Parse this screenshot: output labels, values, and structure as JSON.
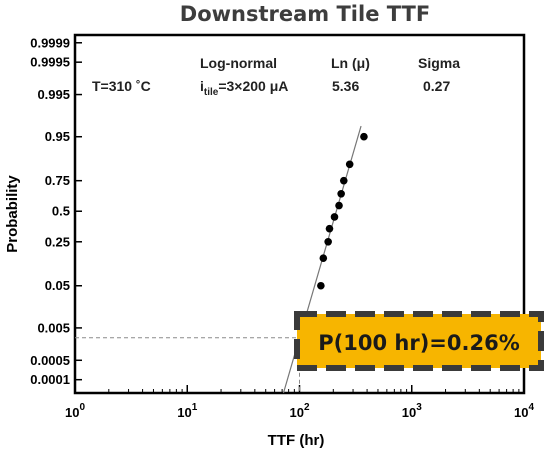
{
  "chart_data": {
    "type": "scatter",
    "title": "Downstream Tile TTF",
    "xlabel": "TTF (hr)",
    "ylabel": "Probability",
    "x_scale": "log",
    "xlim": [
      1,
      10000
    ],
    "x_ticks": [
      {
        "base": "10",
        "exp": "0"
      },
      {
        "base": "10",
        "exp": "1"
      },
      {
        "base": "10",
        "exp": "2"
      },
      {
        "base": "10",
        "exp": "3"
      },
      {
        "base": "10",
        "exp": "4"
      }
    ],
    "y_scale": "lognormal-probability",
    "ylim": [
      3e-05,
      0.99995
    ],
    "y_ticks": [
      "0.9999",
      "0.9995",
      "0.995",
      "0.95",
      "0.75",
      "0.5",
      "0.25",
      "0.05",
      "0.005",
      "0.0005",
      "0.0001"
    ],
    "grid": false,
    "series": [
      {
        "points": [
          {
            "x": 155,
            "y": 0.05
          },
          {
            "x": 163,
            "y": 0.15
          },
          {
            "x": 180,
            "y": 0.25
          },
          {
            "x": 185,
            "y": 0.35
          },
          {
            "x": 205,
            "y": 0.45
          },
          {
            "x": 225,
            "y": 0.55
          },
          {
            "x": 235,
            "y": 0.65
          },
          {
            "x": 248,
            "y": 0.75
          },
          {
            "x": 280,
            "y": 0.85
          },
          {
            "x": 375,
            "y": 0.95
          }
        ]
      }
    ],
    "fit": {
      "ln_mu": 5.36,
      "sigma": 0.27
    },
    "reference": {
      "x": 100,
      "y": 0.0026
    }
  },
  "annotations": {
    "condition": "T=310 ˚C",
    "model_label": "Log-normal",
    "current_prefix": "i",
    "current_sub": "tile",
    "current_value": "=3×200 μA",
    "mu_header": "Ln (μ)",
    "mu_value": "5.36",
    "sigma_header": "Sigma",
    "sigma_value": "0.27"
  },
  "callout": {
    "text": "P(100 hr)=0.26%"
  },
  "colors": {
    "callout_fill": "#f7b500",
    "callout_border": "#3a3a3a",
    "point": "#000000",
    "fit_line": "#777777",
    "guide": "#8a8a8a"
  }
}
